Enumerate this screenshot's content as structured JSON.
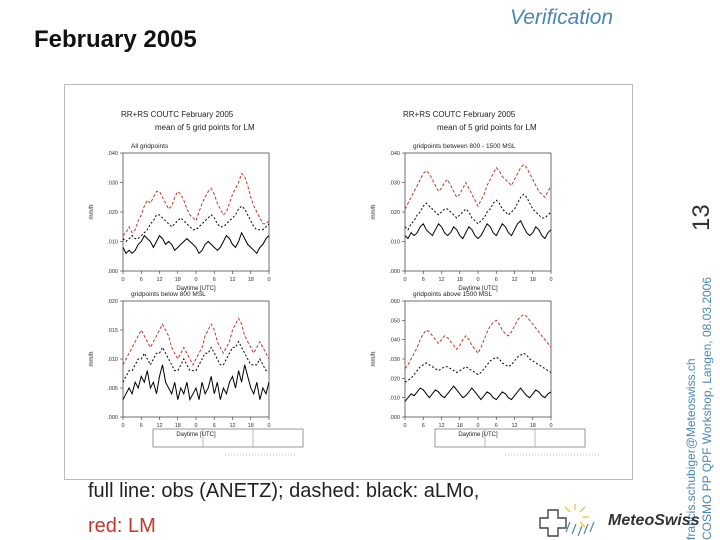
{
  "slide": {
    "header": "Verification",
    "title": "February 2005",
    "page_number": "13",
    "email": "francis.schubiger@Meteoswiss.ch",
    "workshop": "COSMO PP QPF Workshop, Langen, 08.03.2006",
    "caption_line1": "full line: obs (ANETZ); dashed: black: aLMo,",
    "caption_line2": "red: LM",
    "logo_text": "MeteoSwiss",
    "colors": {
      "accent": "#4a86b4",
      "lm": "#c0392b",
      "obs": "#000000",
      "almo": "#000000"
    }
  },
  "panels": [
    {
      "header1": "RR+RS COUTC February 2005",
      "header2": "mean of 5 grid points for LM"
    },
    {
      "header1": "RR+RS COUTC February 2005",
      "header2": "mean of 5 grid points for LM"
    }
  ],
  "chart_data": [
    {
      "type": "line",
      "title": "All gridpoints",
      "ylabel": "mm/h",
      "xlabel": "Daytime [UTC]",
      "x": [
        0,
        1,
        2,
        3,
        4,
        5,
        6,
        7,
        8,
        9,
        10,
        11,
        12,
        13,
        14,
        15,
        16,
        17,
        18,
        19,
        20,
        21,
        22,
        23,
        24,
        25,
        26,
        27,
        28,
        29,
        30,
        31,
        32,
        33,
        34,
        35,
        36,
        37,
        38,
        39,
        40,
        41,
        42,
        43,
        44,
        45,
        46,
        47,
        48
      ],
      "xticks": [
        0,
        6,
        12,
        18,
        24,
        30,
        36,
        42,
        48
      ],
      "xtick_labels": [
        "0",
        "6",
        "12",
        "18",
        "0",
        "6",
        "12",
        "18",
        "0"
      ],
      "ylim": [
        0.0,
        0.04
      ],
      "yticks": [
        0.0,
        0.01,
        0.02,
        0.03,
        0.04
      ],
      "ytick_labels": [
        ".000",
        ".010",
        ".020",
        ".030",
        ".040"
      ],
      "series": [
        {
          "style": "red-dashed",
          "values": [
            0.012,
            0.013,
            0.015,
            0.013,
            0.014,
            0.017,
            0.019,
            0.022,
            0.024,
            0.023,
            0.025,
            0.027,
            0.027,
            0.025,
            0.023,
            0.021,
            0.022,
            0.025,
            0.027,
            0.026,
            0.024,
            0.021,
            0.019,
            0.018,
            0.017,
            0.02,
            0.023,
            0.025,
            0.027,
            0.028,
            0.026,
            0.023,
            0.021,
            0.019,
            0.02,
            0.023,
            0.026,
            0.028,
            0.03,
            0.033,
            0.032,
            0.029,
            0.025,
            0.022,
            0.02,
            0.018,
            0.016,
            0.016,
            0.017
          ]
        },
        {
          "style": "black-dashed",
          "values": [
            0.011,
            0.01,
            0.011,
            0.012,
            0.011,
            0.011,
            0.012,
            0.013,
            0.014,
            0.016,
            0.017,
            0.019,
            0.019,
            0.018,
            0.017,
            0.016,
            0.015,
            0.016,
            0.017,
            0.018,
            0.017,
            0.016,
            0.015,
            0.014,
            0.014,
            0.015,
            0.016,
            0.017,
            0.018,
            0.019,
            0.018,
            0.016,
            0.015,
            0.015,
            0.016,
            0.017,
            0.018,
            0.019,
            0.021,
            0.022,
            0.021,
            0.019,
            0.017,
            0.015,
            0.014,
            0.014,
            0.014,
            0.015,
            0.016
          ]
        },
        {
          "style": "black-solid",
          "values": [
            0.008,
            0.006,
            0.007,
            0.006,
            0.007,
            0.009,
            0.01,
            0.012,
            0.011,
            0.01,
            0.008,
            0.01,
            0.012,
            0.011,
            0.009,
            0.01,
            0.009,
            0.007,
            0.008,
            0.009,
            0.01,
            0.011,
            0.01,
            0.009,
            0.008,
            0.006,
            0.007,
            0.009,
            0.01,
            0.009,
            0.008,
            0.007,
            0.008,
            0.01,
            0.012,
            0.011,
            0.009,
            0.008,
            0.01,
            0.013,
            0.011,
            0.009,
            0.008,
            0.007,
            0.006,
            0.008,
            0.009,
            0.011,
            0.012
          ]
        }
      ]
    },
    {
      "type": "line",
      "title": "gridpoints between 800 - 1500 MSL",
      "ylabel": "mm/h",
      "xlabel": "Daytime [UTC]",
      "x": [
        0,
        1,
        2,
        3,
        4,
        5,
        6,
        7,
        8,
        9,
        10,
        11,
        12,
        13,
        14,
        15,
        16,
        17,
        18,
        19,
        20,
        21,
        22,
        23,
        24,
        25,
        26,
        27,
        28,
        29,
        30,
        31,
        32,
        33,
        34,
        35,
        36,
        37,
        38,
        39,
        40,
        41,
        42,
        43,
        44,
        45,
        46,
        47,
        48
      ],
      "xticks": [
        0,
        6,
        12,
        18,
        24,
        30,
        36,
        42,
        48
      ],
      "xtick_labels": [
        "0",
        "6",
        "12",
        "18",
        "0",
        "6",
        "12",
        "18",
        "0"
      ],
      "ylim": [
        0.0,
        0.04
      ],
      "yticks": [
        0.0,
        0.01,
        0.02,
        0.03,
        0.04
      ],
      "ytick_labels": [
        ".000",
        ".010",
        ".020",
        ".030",
        ".040"
      ],
      "series": [
        {
          "style": "red-dashed",
          "values": [
            0.021,
            0.023,
            0.025,
            0.027,
            0.029,
            0.031,
            0.033,
            0.034,
            0.033,
            0.031,
            0.029,
            0.027,
            0.028,
            0.03,
            0.031,
            0.029,
            0.027,
            0.025,
            0.026,
            0.028,
            0.03,
            0.028,
            0.026,
            0.024,
            0.022,
            0.024,
            0.026,
            0.029,
            0.031,
            0.033,
            0.035,
            0.034,
            0.032,
            0.031,
            0.03,
            0.029,
            0.031,
            0.033,
            0.035,
            0.036,
            0.035,
            0.033,
            0.031,
            0.029,
            0.027,
            0.026,
            0.025,
            0.027,
            0.029
          ]
        },
        {
          "style": "black-dashed",
          "values": [
            0.015,
            0.014,
            0.016,
            0.017,
            0.019,
            0.02,
            0.022,
            0.023,
            0.022,
            0.021,
            0.02,
            0.019,
            0.02,
            0.021,
            0.021,
            0.02,
            0.019,
            0.018,
            0.019,
            0.02,
            0.021,
            0.02,
            0.018,
            0.017,
            0.016,
            0.017,
            0.018,
            0.02,
            0.021,
            0.023,
            0.024,
            0.023,
            0.021,
            0.02,
            0.019,
            0.02,
            0.021,
            0.023,
            0.025,
            0.026,
            0.025,
            0.023,
            0.021,
            0.02,
            0.019,
            0.018,
            0.018,
            0.019,
            0.02
          ]
        },
        {
          "style": "black-solid",
          "values": [
            0.012,
            0.011,
            0.013,
            0.012,
            0.013,
            0.015,
            0.016,
            0.014,
            0.013,
            0.012,
            0.014,
            0.016,
            0.015,
            0.013,
            0.012,
            0.013,
            0.015,
            0.014,
            0.012,
            0.011,
            0.013,
            0.015,
            0.014,
            0.012,
            0.011,
            0.012,
            0.014,
            0.016,
            0.015,
            0.013,
            0.012,
            0.014,
            0.016,
            0.015,
            0.013,
            0.012,
            0.014,
            0.016,
            0.017,
            0.015,
            0.013,
            0.012,
            0.013,
            0.015,
            0.014,
            0.012,
            0.011,
            0.013,
            0.014
          ]
        }
      ]
    },
    {
      "type": "line",
      "title": "gridpoints below 800 MSL",
      "ylabel": "mm/h",
      "xlabel": "Daytime [UTC]",
      "x": [
        0,
        1,
        2,
        3,
        4,
        5,
        6,
        7,
        8,
        9,
        10,
        11,
        12,
        13,
        14,
        15,
        16,
        17,
        18,
        19,
        20,
        21,
        22,
        23,
        24,
        25,
        26,
        27,
        28,
        29,
        30,
        31,
        32,
        33,
        34,
        35,
        36,
        37,
        38,
        39,
        40,
        41,
        42,
        43,
        44,
        45,
        46,
        47,
        48
      ],
      "xticks": [
        0,
        6,
        12,
        18,
        24,
        30,
        36,
        42,
        48
      ],
      "xtick_labels": [
        "0",
        "6",
        "12",
        "18",
        "0",
        "6",
        "12",
        "18",
        "0"
      ],
      "ylim": [
        0.0,
        0.02
      ],
      "yticks": [
        0.0,
        0.005,
        0.01,
        0.015,
        0.02
      ],
      "ytick_labels": [
        ".000",
        ".005",
        ".010",
        ".015",
        ".020"
      ],
      "series": [
        {
          "style": "red-dashed",
          "values": [
            0.009,
            0.01,
            0.011,
            0.012,
            0.013,
            0.014,
            0.015,
            0.014,
            0.013,
            0.012,
            0.013,
            0.014,
            0.015,
            0.016,
            0.015,
            0.014,
            0.012,
            0.011,
            0.01,
            0.011,
            0.012,
            0.011,
            0.01,
            0.009,
            0.01,
            0.011,
            0.012,
            0.014,
            0.015,
            0.016,
            0.015,
            0.013,
            0.012,
            0.011,
            0.012,
            0.013,
            0.015,
            0.016,
            0.017,
            0.016,
            0.014,
            0.013,
            0.012,
            0.011,
            0.012,
            0.013,
            0.012,
            0.011,
            0.01
          ]
        },
        {
          "style": "black-dashed",
          "values": [
            0.006,
            0.007,
            0.008,
            0.008,
            0.009,
            0.01,
            0.01,
            0.011,
            0.01,
            0.009,
            0.01,
            0.011,
            0.011,
            0.012,
            0.011,
            0.01,
            0.009,
            0.008,
            0.008,
            0.009,
            0.01,
            0.009,
            0.008,
            0.008,
            0.008,
            0.009,
            0.01,
            0.011,
            0.011,
            0.012,
            0.011,
            0.01,
            0.009,
            0.009,
            0.01,
            0.011,
            0.012,
            0.012,
            0.013,
            0.012,
            0.011,
            0.01,
            0.009,
            0.009,
            0.009,
            0.01,
            0.009,
            0.008,
            0.008
          ]
        },
        {
          "style": "black-solid",
          "values": [
            0.003,
            0.004,
            0.005,
            0.004,
            0.006,
            0.005,
            0.007,
            0.006,
            0.008,
            0.005,
            0.006,
            0.004,
            0.007,
            0.009,
            0.006,
            0.005,
            0.004,
            0.006,
            0.003,
            0.005,
            0.004,
            0.006,
            0.003,
            0.004,
            0.005,
            0.003,
            0.006,
            0.004,
            0.005,
            0.007,
            0.004,
            0.006,
            0.003,
            0.005,
            0.004,
            0.006,
            0.007,
            0.005,
            0.008,
            0.006,
            0.009,
            0.007,
            0.005,
            0.004,
            0.006,
            0.003,
            0.005,
            0.004,
            0.006
          ]
        }
      ]
    },
    {
      "type": "line",
      "title": "gridpoints above 1500 MSL",
      "ylabel": "mm/h",
      "xlabel": "Daytime [UTC]",
      "x": [
        0,
        1,
        2,
        3,
        4,
        5,
        6,
        7,
        8,
        9,
        10,
        11,
        12,
        13,
        14,
        15,
        16,
        17,
        18,
        19,
        20,
        21,
        22,
        23,
        24,
        25,
        26,
        27,
        28,
        29,
        30,
        31,
        32,
        33,
        34,
        35,
        36,
        37,
        38,
        39,
        40,
        41,
        42,
        43,
        44,
        45,
        46,
        47,
        48
      ],
      "xticks": [
        0,
        6,
        12,
        18,
        24,
        30,
        36,
        42,
        48
      ],
      "xtick_labels": [
        "0",
        "6",
        "12",
        "18",
        "0",
        "6",
        "12",
        "18",
        "0"
      ],
      "ylim": [
        0.0,
        0.06
      ],
      "yticks": [
        0.0,
        0.01,
        0.02,
        0.03,
        0.04,
        0.05,
        0.06
      ],
      "ytick_labels": [
        ".000",
        ".010",
        ".020",
        ".030",
        ".040",
        ".050",
        ".060"
      ],
      "series": [
        {
          "style": "red-dashed",
          "values": [
            0.025,
            0.027,
            0.03,
            0.033,
            0.036,
            0.04,
            0.043,
            0.045,
            0.044,
            0.042,
            0.04,
            0.038,
            0.04,
            0.042,
            0.041,
            0.039,
            0.037,
            0.035,
            0.037,
            0.04,
            0.042,
            0.04,
            0.037,
            0.035,
            0.033,
            0.036,
            0.04,
            0.044,
            0.047,
            0.049,
            0.05,
            0.048,
            0.045,
            0.043,
            0.042,
            0.044,
            0.047,
            0.05,
            0.052,
            0.053,
            0.052,
            0.05,
            0.048,
            0.046,
            0.044,
            0.042,
            0.04,
            0.038,
            0.036
          ]
        },
        {
          "style": "black-dashed",
          "values": [
            0.018,
            0.019,
            0.02,
            0.022,
            0.024,
            0.026,
            0.027,
            0.028,
            0.027,
            0.026,
            0.025,
            0.024,
            0.025,
            0.026,
            0.026,
            0.025,
            0.024,
            0.023,
            0.024,
            0.025,
            0.026,
            0.025,
            0.024,
            0.023,
            0.022,
            0.023,
            0.025,
            0.027,
            0.029,
            0.03,
            0.031,
            0.03,
            0.028,
            0.027,
            0.026,
            0.027,
            0.029,
            0.031,
            0.032,
            0.033,
            0.032,
            0.03,
            0.029,
            0.028,
            0.027,
            0.026,
            0.025,
            0.024,
            0.023
          ]
        },
        {
          "style": "black-solid",
          "values": [
            0.008,
            0.01,
            0.012,
            0.011,
            0.013,
            0.015,
            0.014,
            0.012,
            0.01,
            0.012,
            0.014,
            0.013,
            0.011,
            0.01,
            0.012,
            0.014,
            0.016,
            0.014,
            0.012,
            0.01,
            0.011,
            0.013,
            0.015,
            0.013,
            0.011,
            0.009,
            0.011,
            0.013,
            0.012,
            0.01,
            0.009,
            0.011,
            0.013,
            0.012,
            0.01,
            0.009,
            0.011,
            0.013,
            0.015,
            0.013,
            0.011,
            0.01,
            0.012,
            0.014,
            0.013,
            0.011,
            0.01,
            0.012,
            0.013
          ]
        }
      ]
    }
  ]
}
